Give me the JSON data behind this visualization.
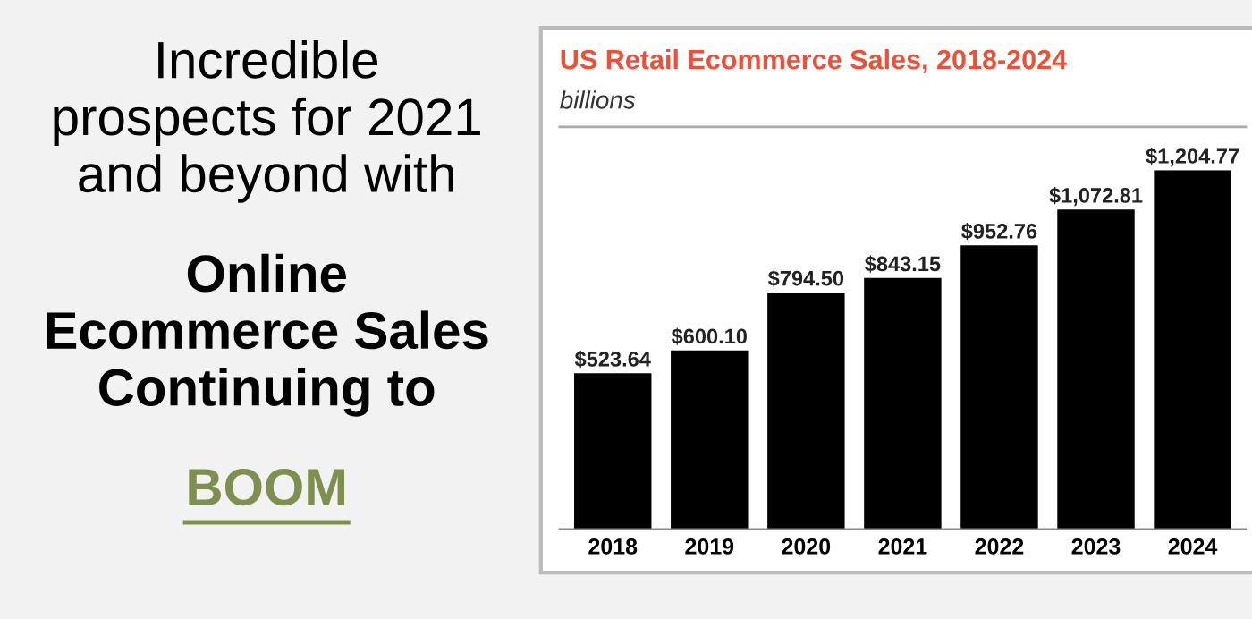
{
  "chart_data": {
    "type": "bar",
    "title": "US Retail Ecommerce Sales, 2018-2024",
    "subtitle": "billions",
    "annotations": [
      "Incredible\nprospects for 2021\nand beyond with",
      "Online\nEcommerce Sales\nContinuing to",
      "BOOM"
    ],
    "categories": [
      "2018",
      "2019",
      "2020",
      "2021",
      "2022",
      "2023",
      "2024"
    ],
    "values": [
      523.64,
      600.1,
      794.5,
      843.15,
      952.76,
      1072.81,
      1204.77
    ],
    "value_labels": [
      "$523.64",
      "$600.10",
      "$794.50",
      "$843.15",
      "$952.76",
      "$1,072.81",
      "$1,204.77"
    ],
    "color": "#000000"
  }
}
